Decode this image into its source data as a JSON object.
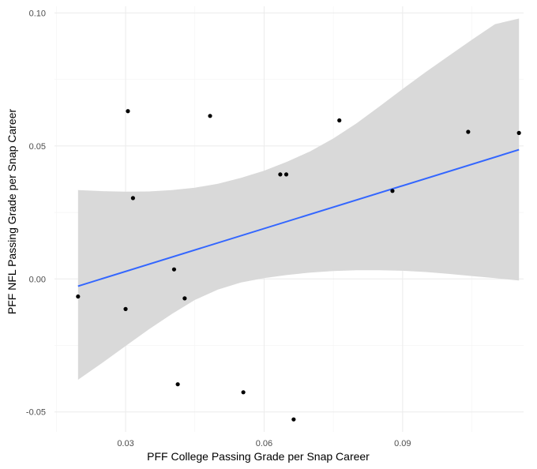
{
  "chart_data": {
    "type": "scatter",
    "title": "",
    "xlabel": "PFF College Passing Grade per Snap Career",
    "ylabel": "PFF NFL Passing Grade per Snap Career",
    "xlim": [
      0.0146,
      0.1162
    ],
    "ylim": [
      -0.0575,
      0.1025
    ],
    "x_ticks": [
      0.03,
      0.06,
      0.09
    ],
    "x_tick_labels": [
      "0.03",
      "0.06",
      "0.09"
    ],
    "x_minor_ticks": [
      0.015,
      0.045,
      0.075,
      0.105
    ],
    "y_ticks": [
      -0.05,
      0.0,
      0.05,
      0.1
    ],
    "y_tick_labels": [
      "-0.05",
      "0.00",
      "0.05",
      "0.10"
    ],
    "y_minor_ticks": [
      -0.025,
      0.025,
      0.075
    ],
    "grid": true,
    "points": [
      {
        "x": 0.0197,
        "y": -0.0066
      },
      {
        "x": 0.03,
        "y": -0.0113
      },
      {
        "x": 0.0305,
        "y": 0.0631
      },
      {
        "x": 0.0316,
        "y": 0.0304
      },
      {
        "x": 0.0405,
        "y": 0.0036
      },
      {
        "x": 0.0413,
        "y": -0.0396
      },
      {
        "x": 0.0428,
        "y": -0.0073
      },
      {
        "x": 0.0483,
        "y": 0.0613
      },
      {
        "x": 0.0555,
        "y": -0.0426
      },
      {
        "x": 0.0635,
        "y": 0.0393
      },
      {
        "x": 0.0648,
        "y": 0.0393
      },
      {
        "x": 0.0664,
        "y": -0.0528
      },
      {
        "x": 0.0763,
        "y": 0.0596
      },
      {
        "x": 0.0878,
        "y": 0.0331
      },
      {
        "x": 0.1042,
        "y": 0.0553
      },
      {
        "x": 0.1152,
        "y": 0.0549
      }
    ],
    "trend_line": {
      "method": "linear",
      "color": "#3366FF",
      "x": [
        0.0197,
        0.1152
      ],
      "y": [
        -0.0027,
        0.0486
      ]
    },
    "confidence_band": {
      "color": "#D9D9D9",
      "x": [
        0.0197,
        0.025,
        0.03,
        0.035,
        0.04,
        0.045,
        0.05,
        0.055,
        0.06,
        0.065,
        0.07,
        0.075,
        0.08,
        0.085,
        0.09,
        0.095,
        0.1,
        0.105,
        0.11,
        0.1152
      ],
      "upper": [
        0.0334,
        0.033,
        0.0328,
        0.0329,
        0.0334,
        0.0343,
        0.0358,
        0.038,
        0.0407,
        0.0441,
        0.048,
        0.0528,
        0.0585,
        0.0649,
        0.0714,
        0.0778,
        0.0839,
        0.0899,
        0.0958,
        0.0979
      ],
      "lower": [
        -0.0379,
        -0.0315,
        -0.0252,
        -0.019,
        -0.0132,
        -0.0079,
        -0.004,
        -0.0013,
        0.0003,
        0.0015,
        0.0024,
        0.003,
        0.0033,
        0.0033,
        0.0031,
        0.0026,
        0.0019,
        0.0011,
        0.0003,
        -0.0006
      ]
    }
  }
}
